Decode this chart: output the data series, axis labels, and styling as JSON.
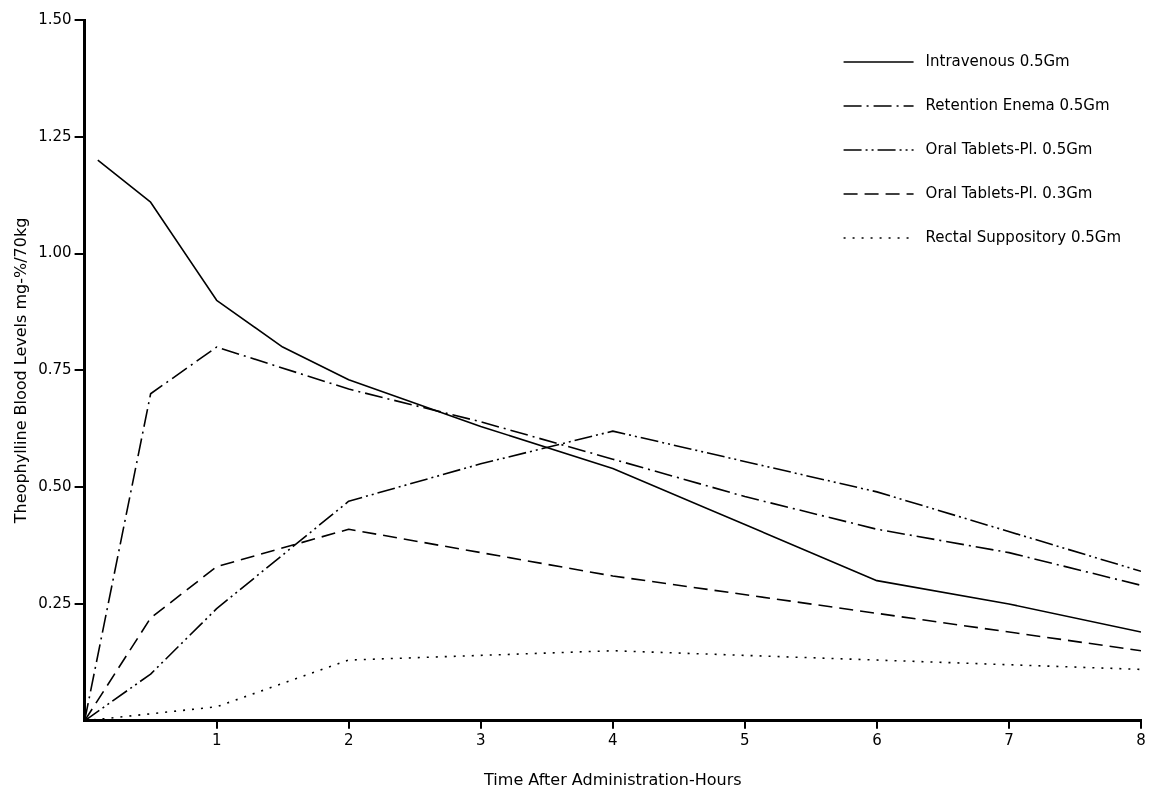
{
  "chart_data": {
    "type": "line",
    "xlabel": "Time After Administration-Hours",
    "ylabel": "Theophylline Blood Levels mg-%/70kg",
    "xlim": [
      0,
      8
    ],
    "xticks": [
      1,
      2,
      3,
      4,
      5,
      6,
      7,
      8
    ],
    "ylim": [
      0,
      1.5
    ],
    "yticks": [
      0.25,
      {
        "value": 0.5,
        "label": "0.50"
      },
      0.75,
      {
        "value": 1.0,
        "label": "1.00"
      },
      1.25,
      {
        "value": 1.5,
        "label": "1.50"
      }
    ],
    "grid": false,
    "legend": "top right",
    "marker": "none",
    "series": [
      {
        "name": "Intravenous 0.5Gm",
        "color": "#000000",
        "line_style": "solid",
        "x": [
          0.1,
          0.5,
          1,
          1.5,
          2,
          3,
          4,
          5,
          6,
          7,
          8
        ],
        "values": [
          1.2,
          1.11,
          0.9,
          0.8,
          0.73,
          0.63,
          0.54,
          0.42,
          0.3,
          0.25,
          0.19
        ]
      },
      {
        "name": "Retention Enema 0.5Gm",
        "color": "#000000",
        "line_style": "dashdot",
        "x": [
          0,
          0.5,
          1,
          2,
          3,
          4,
          5,
          6,
          7,
          8
        ],
        "values": [
          0,
          0.7,
          0.8,
          0.71,
          0.64,
          0.56,
          0.48,
          0.41,
          0.36,
          0.29
        ]
      },
      {
        "name": "Oral Tablets-Pl. 0.5Gm",
        "color": "#000000",
        "line_style": "dashdotdot",
        "x": [
          0,
          0.5,
          1,
          2,
          3,
          4,
          6,
          8
        ],
        "values": [
          0,
          0.1,
          0.24,
          0.47,
          0.55,
          0.62,
          0.49,
          0.32
        ]
      },
      {
        "name": "Oral Tablets-Pl. 0.3Gm",
        "color": "#000000",
        "line_style": "dashed",
        "x": [
          0,
          0.5,
          1,
          2,
          4,
          6,
          8
        ],
        "values": [
          0,
          0.22,
          0.33,
          0.41,
          0.31,
          0.23,
          0.15
        ]
      },
      {
        "name": "Rectal Suppository 0.5Gm",
        "color": "#000000",
        "line_style": "dotted",
        "x": [
          0,
          1,
          2,
          4,
          6,
          8
        ],
        "values": [
          0,
          0.03,
          0.13,
          0.15,
          0.13,
          0.11
        ]
      }
    ]
  }
}
